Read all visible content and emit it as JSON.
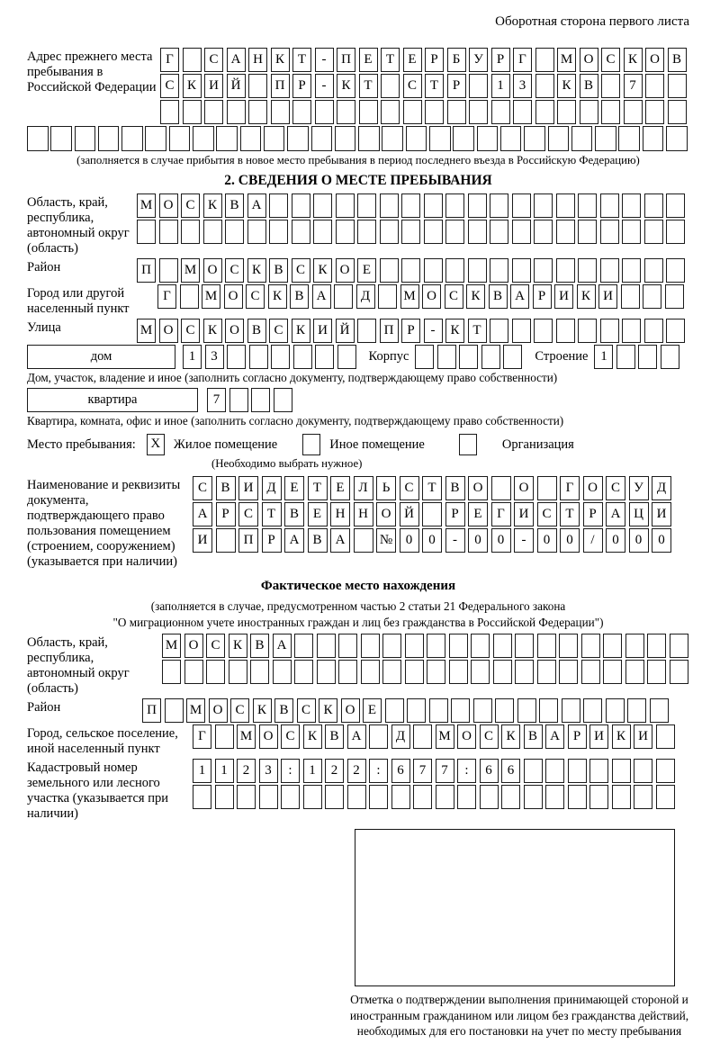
{
  "colors": {
    "ink": "#000000",
    "paper": "#ffffff"
  },
  "header": {
    "back_side_note": "Оборотная сторона первого листа"
  },
  "prev_address": {
    "label": "Адрес прежнего места пребывания в Российской Федерации",
    "rows": [
      {
        "text": "Г САНКТ-ПЕТЕРБУРГ МОСКОВ",
        "len": 24
      },
      {
        "text": "СКИЙ ПР-КТ СТР 13 КВ 7",
        "len": 24
      },
      {
        "text": "",
        "len": 24
      }
    ],
    "overflow_row": {
      "text": "",
      "len": 28
    },
    "note": "(заполняется в случае прибытия в новое место пребывания в период последнего въезда в Российскую Федерацию)"
  },
  "section2": {
    "title": "2. СВЕДЕНИЯ О МЕСТЕ ПРЕБЫВАНИЯ",
    "region": {
      "label": "Область, край, республика, автономный округ (область)",
      "rows": [
        {
          "text": "МОСКВА",
          "len": 25
        },
        {
          "text": "",
          "len": 25
        }
      ]
    },
    "district": {
      "label": "Район",
      "row": {
        "text": "П МОСКВСКОЕ",
        "len": 25
      }
    },
    "city": {
      "label": "Город или другой населенный пункт",
      "row": {
        "text": "Г МОСКВА Д МОСКВАРИКИ",
        "len": 24
      }
    },
    "street": {
      "label": "Улица",
      "row": {
        "text": "МОСКОВСКИЙ ПР-КТ",
        "len": 25
      }
    },
    "house": {
      "box_label": "дом",
      "cells": {
        "text": "13",
        "len": 8
      },
      "korpus_label": "Корпус",
      "korpus_cells": {
        "text": "",
        "len": 5
      },
      "stroenie_label": "Строение",
      "stroenie_cells": {
        "text": "1",
        "len": 4
      }
    },
    "house_note": "Дом, участок, владение и иное (заполнить согласно документу, подтверждающему право собственности)",
    "apartment": {
      "box_label": "квартира",
      "cells": {
        "text": "7",
        "len": 4
      }
    },
    "apartment_note": "Квартира, комната, офис и иное (заполнить согласно документу, подтверждающему право собственности)",
    "stay_type": {
      "label": "Место пребывания:",
      "options": [
        {
          "label": "Жилое помещение",
          "mark": "X"
        },
        {
          "label": "Иное помещение",
          "mark": ""
        },
        {
          "label": "Организация",
          "mark": ""
        }
      ],
      "note": "(Необходимо выбрать нужное)"
    },
    "document": {
      "label": "Наименование и реквизиты документа, подтверждающего право пользования помещением (строением, сооружением) (указывается при наличии)",
      "rows": [
        {
          "text": "СВИДЕТЕЛЬСТВО О ГОСУД",
          "len": 21
        },
        {
          "text": "АРСТВЕННОЙ РЕГИСТРАЦИ",
          "len": 21
        },
        {
          "text": "И ПРАВА №00-00-00/000",
          "len": 21
        }
      ]
    }
  },
  "actual_location": {
    "title": "Фактическое место нахождения",
    "note_line1": "(заполняется в случае, предусмотренном частью 2 статьи 21 Федерального закона",
    "note_line2": "\"О миграционном учете иностранных граждан и лиц без гражданства в Российской Федерации\")",
    "region": {
      "label": "Область, край, республика, автономный округ (область)",
      "rows": [
        {
          "text": "МОСКВА",
          "len": 24
        },
        {
          "text": "",
          "len": 24
        }
      ]
    },
    "district": {
      "label": "Район",
      "row": {
        "text": "П МОСКВСКОЕ",
        "len": 24
      }
    },
    "city": {
      "label": "Город, сельское поселение, иной населенный пункт",
      "row": {
        "text": "Г МОСКВА Д МОСКВАРИКИ",
        "len": 22
      }
    },
    "cadastral": {
      "label": "Кадастровый номер земельного или лесного участка (указывается при наличии)",
      "rows": [
        {
          "text": "1123:122:677:66",
          "len": 22
        },
        {
          "text": "",
          "len": 22
        }
      ]
    },
    "stamp_note": "Отметка о подтверждении выполнения принимающей стороной и иностранным гражданином или лицом без гражданства действий, необходимых для его постановки на учет по месту пребывания"
  }
}
